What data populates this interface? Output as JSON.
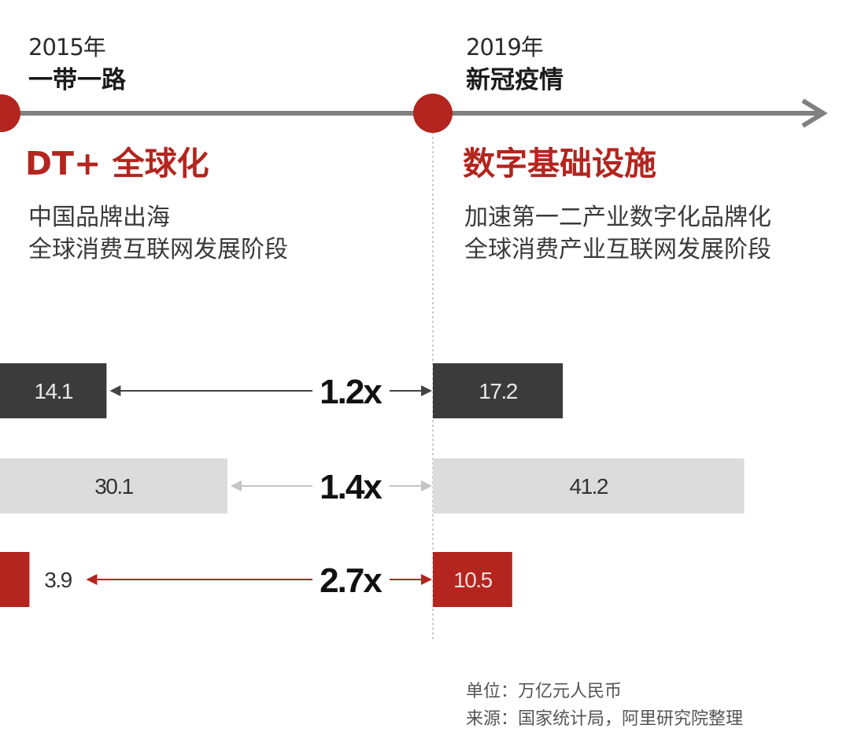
{
  "timeline": {
    "left": {
      "year": "2015年",
      "event": "一带一路",
      "phase": "DT+ 全球化",
      "desc_line1": "中国品牌出海",
      "desc_line2": "全球消费互联网发展阶段"
    },
    "right": {
      "year": "2019年",
      "event": "新冠疫情",
      "phase": "数字基础设施",
      "desc_line1": "加速第一二产业数字化品牌化",
      "desc_line2": "全球消费产业互联网发展阶段"
    }
  },
  "chart_data": {
    "type": "bar",
    "categories": [
      "2015年",
      "2019年"
    ],
    "series": [
      {
        "values": [
          14.1,
          17.2
        ],
        "growth": "1.2x",
        "color": "#3b3b3b",
        "label_color": "#e8e8e8",
        "arrow_color": "#444444"
      },
      {
        "values": [
          30.1,
          41.2
        ],
        "growth": "1.4x",
        "color": "#dcdcdc",
        "label_color": "#333333",
        "arrow_color": "#c4c4c4"
      },
      {
        "values": [
          3.9,
          10.5
        ],
        "growth": "2.7x",
        "color": "#b3251e",
        "label_color": "#f2dddb",
        "arrow_color": "#b3251e"
      }
    ]
  },
  "footer": {
    "unit": "单位：万亿元人民币",
    "source": "来源：国家统计局，阿里研究院整理"
  },
  "colors": {
    "accent": "#b3251e",
    "timeline": "#808080"
  }
}
